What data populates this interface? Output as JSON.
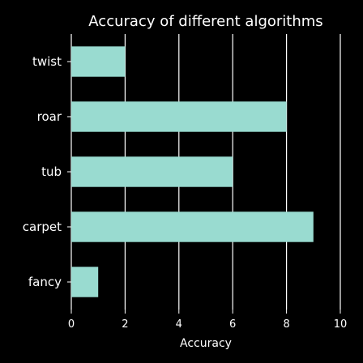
{
  "chart_data": {
    "type": "bar",
    "orientation": "horizontal",
    "title": "Accuracy of different algorithms",
    "xlabel": "Accuracy",
    "ylabel": "",
    "categories": [
      "twist",
      "roar",
      "tub",
      "carpet",
      "fancy"
    ],
    "values": [
      2,
      8,
      6,
      9,
      1
    ],
    "xlim": [
      0,
      10
    ],
    "xticks": [
      "0",
      "2",
      "4",
      "6",
      "8",
      "10"
    ],
    "grid": true,
    "legend": "none",
    "colors": {
      "background": "#000000",
      "bar": "#99dbd0",
      "grid": "#ffffff",
      "text": "#ffffff"
    }
  }
}
